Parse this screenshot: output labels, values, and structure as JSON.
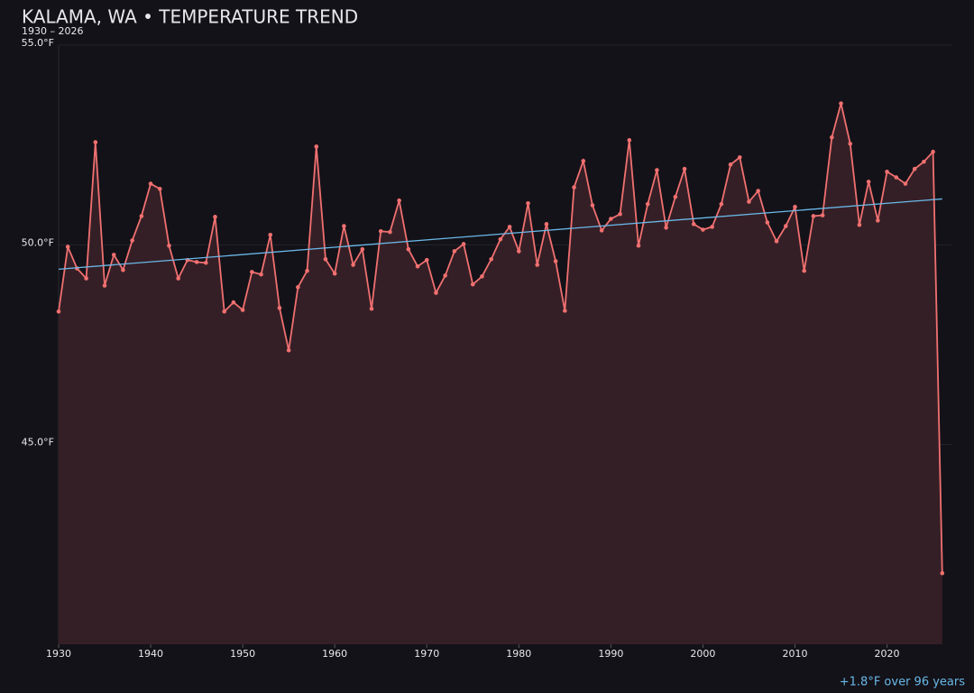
{
  "chart_data": {
    "type": "line",
    "title": "KALAMA, WA • TEMPERATURE TREND",
    "subtitle": "1930 – 2026",
    "annotation": "+1.8°F over 96 years",
    "x": [
      1930,
      1931,
      1932,
      1933,
      1934,
      1935,
      1936,
      1937,
      1938,
      1939,
      1940,
      1941,
      1942,
      1943,
      1944,
      1945,
      1946,
      1947,
      1948,
      1949,
      1950,
      1951,
      1952,
      1953,
      1954,
      1955,
      1956,
      1957,
      1958,
      1959,
      1960,
      1961,
      1962,
      1963,
      1964,
      1965,
      1966,
      1967,
      1968,
      1969,
      1970,
      1971,
      1972,
      1973,
      1974,
      1975,
      1976,
      1977,
      1978,
      1979,
      1980,
      1981,
      1982,
      1983,
      1984,
      1985,
      1986,
      1987,
      1988,
      1989,
      1990,
      1991,
      1992,
      1993,
      1994,
      1995,
      1996,
      1997,
      1998,
      1999,
      2000,
      2001,
      2002,
      2003,
      2004,
      2005,
      2006,
      2007,
      2008,
      2009,
      2010,
      2011,
      2012,
      2013,
      2014,
      2015,
      2016,
      2017,
      2018,
      2019,
      2020,
      2021,
      2022,
      2023,
      2024,
      2025,
      2026
    ],
    "series": [
      {
        "color": "#f07070",
        "fill": "#351f26",
        "values": [
          48.33,
          49.95,
          49.41,
          49.16,
          52.57,
          48.98,
          49.75,
          49.37,
          50.11,
          50.72,
          51.53,
          51.4,
          49.98,
          49.16,
          49.62,
          49.57,
          49.55,
          50.7,
          48.33,
          48.56,
          48.37,
          49.32,
          49.26,
          50.25,
          48.42,
          47.36,
          48.94,
          49.35,
          52.46,
          49.64,
          49.28,
          50.47,
          49.5,
          49.89,
          48.4,
          50.34,
          50.32,
          51.11,
          49.89,
          49.46,
          49.62,
          48.8,
          49.23,
          49.84,
          50.02,
          49.01,
          49.21,
          49.64,
          50.14,
          50.45,
          49.84,
          51.04,
          49.5,
          50.52,
          49.59,
          48.35,
          51.44,
          52.1,
          50.99,
          50.36,
          50.65,
          50.77,
          52.62,
          49.98,
          51.02,
          51.87,
          50.43,
          51.2,
          51.9,
          50.52,
          50.38,
          50.45,
          51.02,
          52.01,
          52.19,
          51.08,
          51.35,
          50.56,
          50.09,
          50.47,
          50.95,
          49.35,
          50.72,
          50.74,
          52.69,
          53.54,
          52.53,
          50.5,
          51.58,
          50.61,
          51.83,
          51.69,
          51.53,
          51.9,
          52.08,
          52.33,
          41.78
        ]
      }
    ],
    "trend": {
      "color": "#6ab8e8",
      "x": [
        1930,
        2026
      ],
      "values": [
        49.39,
        51.15
      ]
    },
    "xlim": [
      1930,
      2027
    ],
    "xticks": [
      1930,
      1940,
      1950,
      1960,
      1970,
      1980,
      1990,
      2000,
      2010,
      2020
    ],
    "ylim": [
      40,
      55
    ],
    "yticks": [
      {
        "value": 45,
        "label": "45.0°F"
      },
      {
        "value": 50,
        "label": "50.0°F"
      },
      {
        "value": 55,
        "label": "55.0°F"
      }
    ],
    "grid": true
  }
}
